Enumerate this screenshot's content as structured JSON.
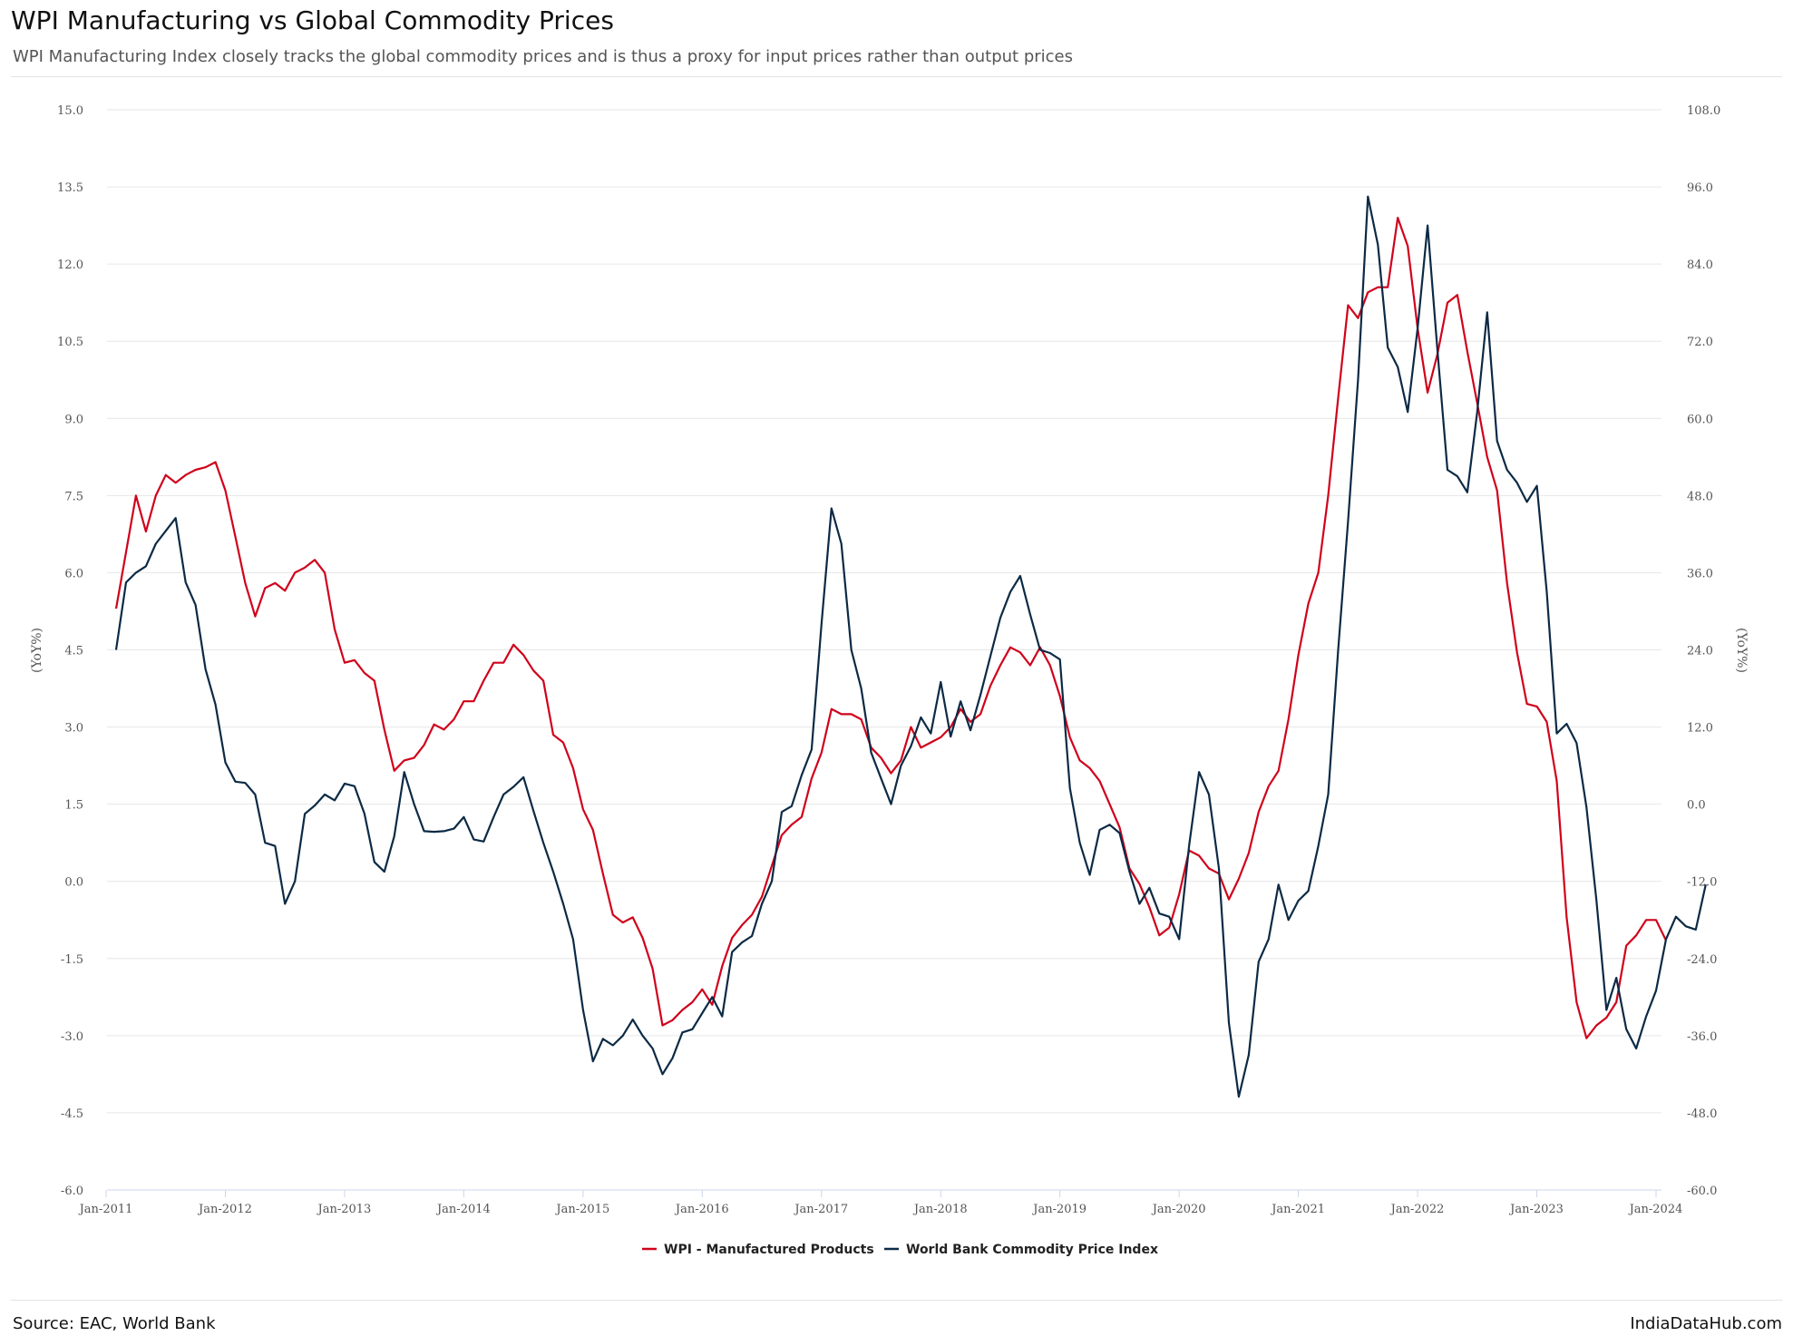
{
  "header": {
    "title": "WPI Manufacturing vs Global Commodity Prices",
    "subtitle": "WPI Manufacturing Index closely tracks the global commodity prices and is thus a proxy for input prices rather than output prices"
  },
  "footer": {
    "source": "Source: EAC, World Bank",
    "brand": "IndiaDataHub.com"
  },
  "colors": {
    "wpi": "#d0021b",
    "commodity": "#0b2a45",
    "grid": "#e6e6e6"
  },
  "chart_data": {
    "type": "line",
    "grid": true,
    "legend_position": "bottom-center",
    "x_start": "Jan-2011",
    "x_frequency": "monthly",
    "x_tick_labels": [
      "Jan-2011",
      "Jan-2012",
      "Jan-2013",
      "Jan-2014",
      "Jan-2015",
      "Jan-2016",
      "Jan-2017",
      "Jan-2018",
      "Jan-2019",
      "Jan-2020",
      "Jan-2021",
      "Jan-2022",
      "Jan-2023",
      "Jan-2024"
    ],
    "y_left": {
      "label": "(YoY%)",
      "range": [
        -6.0,
        15.0
      ],
      "ticks": [
        "15.0",
        "13.5",
        "12.0",
        "10.5",
        "9.0",
        "7.5",
        "6.0",
        "4.5",
        "3.0",
        "1.5",
        "0.0",
        "-1.5",
        "-3.0",
        "-4.5",
        "-6.0"
      ]
    },
    "y_right": {
      "label": "(YoY%)",
      "range": [
        -60.0,
        108.0
      ],
      "ticks": [
        "108.0",
        "96.0",
        "84.0",
        "72.0",
        "60.0",
        "48.0",
        "36.0",
        "24.0",
        "12.0",
        "0.0",
        "-12.0",
        "-24.0",
        "-36.0",
        "-48.0",
        "-60.0"
      ]
    },
    "series": [
      {
        "name": "WPI - Manufactured Products",
        "axis": "left",
        "values": [
          5.3,
          6.4,
          7.5,
          6.8,
          7.5,
          7.9,
          7.75,
          7.9,
          8.0,
          8.05,
          8.15,
          7.6,
          6.7,
          5.8,
          5.15,
          5.7,
          5.8,
          5.65,
          6.0,
          6.1,
          6.25,
          6.0,
          4.9,
          4.25,
          4.3,
          4.05,
          3.9,
          2.95,
          2.15,
          2.35,
          2.4,
          2.65,
          3.05,
          2.95,
          3.15,
          3.5,
          3.5,
          3.9,
          4.25,
          4.25,
          4.6,
          4.4,
          4.1,
          3.9,
          2.85,
          2.7,
          2.2,
          1.4,
          1.0,
          0.15,
          -0.65,
          -0.8,
          -0.7,
          -1.1,
          -1.7,
          -2.8,
          -2.7,
          -2.5,
          -2.35,
          -2.1,
          -2.4,
          -1.65,
          -1.1,
          -0.85,
          -0.65,
          -0.3,
          0.3,
          0.9,
          1.1,
          1.25,
          2.0,
          2.5,
          3.35,
          3.25,
          3.25,
          3.15,
          2.6,
          2.4,
          2.1,
          2.35,
          3.0,
          2.6,
          2.7,
          2.8,
          3.0,
          3.35,
          3.1,
          3.25,
          3.8,
          4.2,
          4.55,
          4.45,
          4.2,
          4.55,
          4.2,
          3.6,
          2.8,
          2.35,
          2.2,
          1.95,
          1.5,
          1.05,
          0.25,
          -0.05,
          -0.5,
          -1.05,
          -0.9,
          -0.25,
          0.6,
          0.5,
          0.25,
          0.15,
          -0.35,
          0.05,
          0.55,
          1.35,
          1.85,
          2.15,
          3.15,
          4.4,
          5.4,
          6.0,
          7.5,
          9.4,
          11.2,
          10.95,
          11.45,
          11.55,
          11.55,
          12.9,
          12.35,
          10.75,
          9.5,
          10.25,
          11.25,
          11.4,
          10.3,
          9.3,
          8.25,
          7.6,
          5.8,
          4.45,
          3.45,
          3.4,
          3.1,
          1.95,
          -0.7,
          -2.35,
          -3.05,
          -2.8,
          -2.65,
          -2.35,
          -1.25,
          -1.05,
          -0.75,
          -0.75,
          -1.15
        ]
      },
      {
        "name": "World Bank Commodity Price Index",
        "axis": "right",
        "values": [
          24,
          34.5,
          36,
          37,
          40.5,
          42.5,
          44.5,
          34.5,
          31,
          21,
          15.5,
          6.5,
          3.5,
          3.3,
          1.5,
          -6,
          -6.5,
          -15.5,
          -12,
          -1.5,
          -0.2,
          1.5,
          0.6,
          3.2,
          2.8,
          -1.5,
          -9,
          -10.5,
          -5,
          5,
          0,
          -4.2,
          -4.3,
          -4.2,
          -3.8,
          -2,
          -5.5,
          -5.8,
          -2,
          1.5,
          2.7,
          4.2,
          -1,
          -6,
          -10.5,
          -15.5,
          -21,
          -32,
          -40,
          -36.5,
          -37.5,
          -36,
          -33.5,
          -36,
          -38,
          -42,
          -39.5,
          -35.5,
          -35,
          -32.5,
          -30,
          -33,
          -23,
          -21.5,
          -20.5,
          -15.5,
          -12,
          -1.2,
          -0.3,
          4.5,
          8.5,
          28,
          46,
          40.5,
          24,
          18,
          8,
          4,
          0,
          6,
          9,
          13.5,
          11,
          19,
          10.5,
          16,
          11.5,
          17,
          23,
          29,
          33,
          35.5,
          29.5,
          24,
          23.5,
          22.5,
          2.5,
          -6,
          -11,
          -4,
          -3.2,
          -4.5,
          -10.5,
          -15.5,
          -13,
          -17,
          -17.5,
          -21,
          -6.5,
          5,
          1.5,
          -10,
          -34,
          -45.5,
          -39,
          -24.5,
          -21,
          -12.5,
          -18,
          -15,
          -13.5,
          -6.5,
          1.5,
          24,
          44,
          66,
          94.5,
          87,
          71,
          68,
          61,
          74,
          90,
          70.5,
          52,
          51,
          48.5,
          61,
          76.5,
          56.5,
          52,
          50,
          47,
          49.5,
          33,
          11,
          12.5,
          9.5,
          -0.5,
          -15,
          -32,
          -27,
          -35,
          -38,
          -33,
          -29,
          -21,
          -17.5,
          -19,
          -19.5,
          -12.5
        ]
      }
    ]
  }
}
